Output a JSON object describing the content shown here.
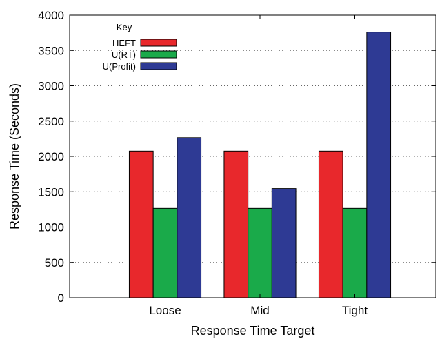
{
  "chart_data": {
    "type": "bar",
    "title": "",
    "xlabel": "Response Time Target",
    "ylabel": "Response Time (Seconds)",
    "categories": [
      "Loose",
      "Mid",
      "Tight"
    ],
    "series": [
      {
        "name": "HEFT",
        "values": [
          2075,
          2075,
          2075
        ],
        "color": "#e8282c"
      },
      {
        "name": "U(RT)",
        "values": [
          1265,
          1265,
          1265
        ],
        "color": "#1aaa4a"
      },
      {
        "name": "U(Profit)",
        "values": [
          2265,
          1545,
          3760
        ],
        "color": "#2e3a94"
      }
    ],
    "ylim": [
      0,
      4000
    ],
    "yticks": [
      0,
      500,
      1000,
      1500,
      2000,
      2500,
      3000,
      3500,
      4000
    ],
    "grid": "horizontal dotted",
    "legend": {
      "title": "Key",
      "placement": "top-left"
    }
  }
}
